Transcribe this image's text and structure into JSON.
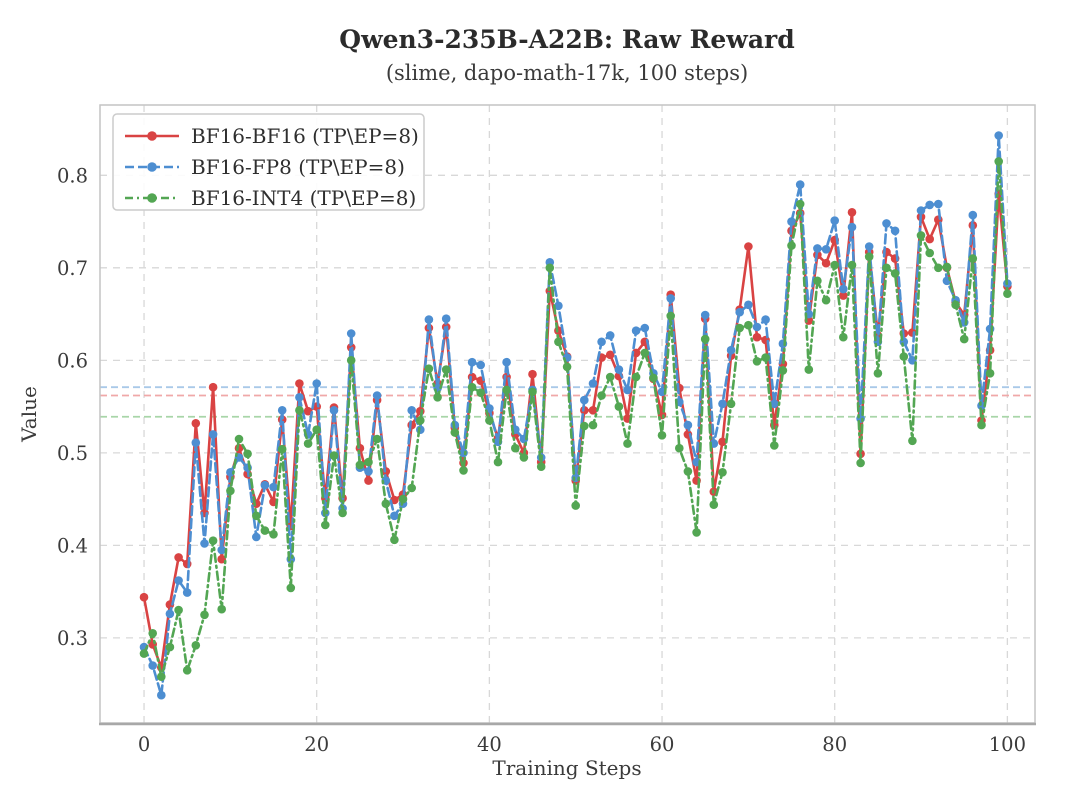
{
  "header": {
    "title": "Qwen3-235B-A22B: Raw Reward",
    "subtitle": "(slime, dapo-math-17k, 100 steps)"
  },
  "chart_data": {
    "type": "line",
    "title": "Qwen3-235B-A22B: Raw Reward",
    "subtitle": "(slime, dapo-math-17k, 100 steps)",
    "xlabel": "Training Steps",
    "ylabel": "Value",
    "x_ticks": [
      0,
      20,
      40,
      60,
      80,
      100
    ],
    "y_ticks": [
      0.3,
      0.4,
      0.5,
      0.6,
      0.7,
      0.8
    ],
    "xlim": [
      -5.1,
      103.2
    ],
    "ylim": [
      0.208,
      0.876
    ],
    "grid": true,
    "grid_color": "#d8d8d8",
    "spine_color": "#c4c4c4",
    "legend_position": "upper-left",
    "x": [
      0,
      1,
      2,
      3,
      4,
      5,
      6,
      7,
      8,
      9,
      10,
      11,
      12,
      13,
      14,
      15,
      16,
      17,
      18,
      19,
      20,
      21,
      22,
      23,
      24,
      25,
      26,
      27,
      28,
      29,
      30,
      31,
      32,
      33,
      34,
      35,
      36,
      37,
      38,
      39,
      40,
      41,
      42,
      43,
      44,
      45,
      46,
      47,
      48,
      49,
      50,
      51,
      52,
      53,
      54,
      55,
      56,
      57,
      58,
      59,
      60,
      61,
      62,
      63,
      64,
      65,
      66,
      67,
      68,
      69,
      70,
      71,
      72,
      73,
      74,
      75,
      76,
      77,
      78,
      79,
      80,
      81,
      82,
      83,
      84,
      85,
      86,
      87,
      88,
      89,
      90,
      91,
      92,
      93,
      94,
      95,
      96,
      97,
      98,
      99,
      100
    ],
    "series": [
      {
        "name": "BF16-BF16 (TP\\EP=8)",
        "color": "#d94343",
        "line_style": "solid",
        "marker": "circle",
        "mean": 0.562,
        "mean_color": "#f0a8a8",
        "values": [
          0.344,
          0.293,
          0.268,
          0.336,
          0.387,
          0.38,
          0.532,
          0.435,
          0.571,
          0.385,
          0.474,
          0.505,
          0.477,
          0.445,
          0.466,
          0.447,
          0.536,
          0.421,
          0.575,
          0.545,
          0.55,
          0.451,
          0.549,
          0.451,
          0.614,
          0.505,
          0.47,
          0.557,
          0.48,
          0.449,
          0.455,
          0.53,
          0.545,
          0.635,
          0.575,
          0.636,
          0.527,
          0.489,
          0.582,
          0.578,
          0.543,
          0.516,
          0.582,
          0.52,
          0.5,
          0.585,
          0.49,
          0.675,
          0.632,
          0.604,
          0.47,
          0.546,
          0.546,
          0.603,
          0.606,
          0.583,
          0.537,
          0.608,
          0.62,
          0.58,
          0.541,
          0.671,
          0.57,
          0.52,
          0.47,
          0.645,
          0.458,
          0.512,
          0.605,
          0.655,
          0.723,
          0.625,
          0.622,
          0.53,
          0.596,
          0.74,
          0.759,
          0.643,
          0.714,
          0.705,
          0.73,
          0.67,
          0.76,
          0.499,
          0.717,
          0.627,
          0.717,
          0.71,
          0.629,
          0.63,
          0.755,
          0.731,
          0.752,
          0.7,
          0.663,
          0.649,
          0.746,
          0.535,
          0.611,
          0.78,
          0.68
        ]
      },
      {
        "name": "BF16-FP8 (TP\\EP=8)",
        "color": "#4d8ed1",
        "line_style": "dashed",
        "marker": "circle",
        "mean": 0.571,
        "mean_color": "#a9c9e8",
        "values": [
          0.29,
          0.27,
          0.238,
          0.326,
          0.362,
          0.349,
          0.511,
          0.402,
          0.52,
          0.395,
          0.479,
          0.495,
          0.484,
          0.409,
          0.465,
          0.463,
          0.546,
          0.385,
          0.56,
          0.52,
          0.575,
          0.435,
          0.546,
          0.44,
          0.629,
          0.484,
          0.48,
          0.562,
          0.47,
          0.432,
          0.445,
          0.546,
          0.525,
          0.644,
          0.57,
          0.645,
          0.53,
          0.5,
          0.598,
          0.595,
          0.548,
          0.512,
          0.598,
          0.525,
          0.515,
          0.568,
          0.495,
          0.706,
          0.659,
          0.603,
          0.473,
          0.557,
          0.575,
          0.62,
          0.627,
          0.59,
          0.568,
          0.632,
          0.635,
          0.586,
          0.566,
          0.667,
          0.555,
          0.53,
          0.49,
          0.649,
          0.51,
          0.553,
          0.611,
          0.652,
          0.66,
          0.636,
          0.644,
          0.553,
          0.618,
          0.75,
          0.79,
          0.65,
          0.721,
          0.72,
          0.751,
          0.677,
          0.744,
          0.537,
          0.723,
          0.62,
          0.748,
          0.74,
          0.62,
          0.6,
          0.762,
          0.768,
          0.769,
          0.686,
          0.665,
          0.641,
          0.757,
          0.551,
          0.634,
          0.843,
          0.683
        ]
      },
      {
        "name": "BF16-INT4 (TP\\EP=8)",
        "color": "#53a653",
        "line_style": "dashdot",
        "marker": "circle",
        "mean": 0.539,
        "mean_color": "#a8d5a8",
        "values": [
          0.283,
          0.305,
          0.258,
          0.29,
          0.33,
          0.265,
          0.292,
          0.325,
          0.405,
          0.331,
          0.459,
          0.515,
          0.499,
          0.432,
          0.416,
          0.412,
          0.504,
          0.354,
          0.546,
          0.51,
          0.525,
          0.422,
          0.497,
          0.435,
          0.6,
          0.487,
          0.49,
          0.515,
          0.445,
          0.406,
          0.45,
          0.462,
          0.535,
          0.591,
          0.56,
          0.59,
          0.522,
          0.481,
          0.571,
          0.565,
          0.535,
          0.49,
          0.568,
          0.505,
          0.495,
          0.566,
          0.485,
          0.7,
          0.62,
          0.593,
          0.443,
          0.529,
          0.53,
          0.562,
          0.582,
          0.55,
          0.51,
          0.582,
          0.608,
          0.581,
          0.519,
          0.648,
          0.505,
          0.48,
          0.414,
          0.623,
          0.444,
          0.479,
          0.553,
          0.635,
          0.638,
          0.599,
          0.603,
          0.508,
          0.589,
          0.724,
          0.769,
          0.59,
          0.686,
          0.665,
          0.703,
          0.625,
          0.703,
          0.489,
          0.712,
          0.586,
          0.7,
          0.694,
          0.604,
          0.513,
          0.735,
          0.716,
          0.7,
          0.701,
          0.66,
          0.623,
          0.71,
          0.53,
          0.586,
          0.815,
          0.672
        ]
      }
    ]
  }
}
